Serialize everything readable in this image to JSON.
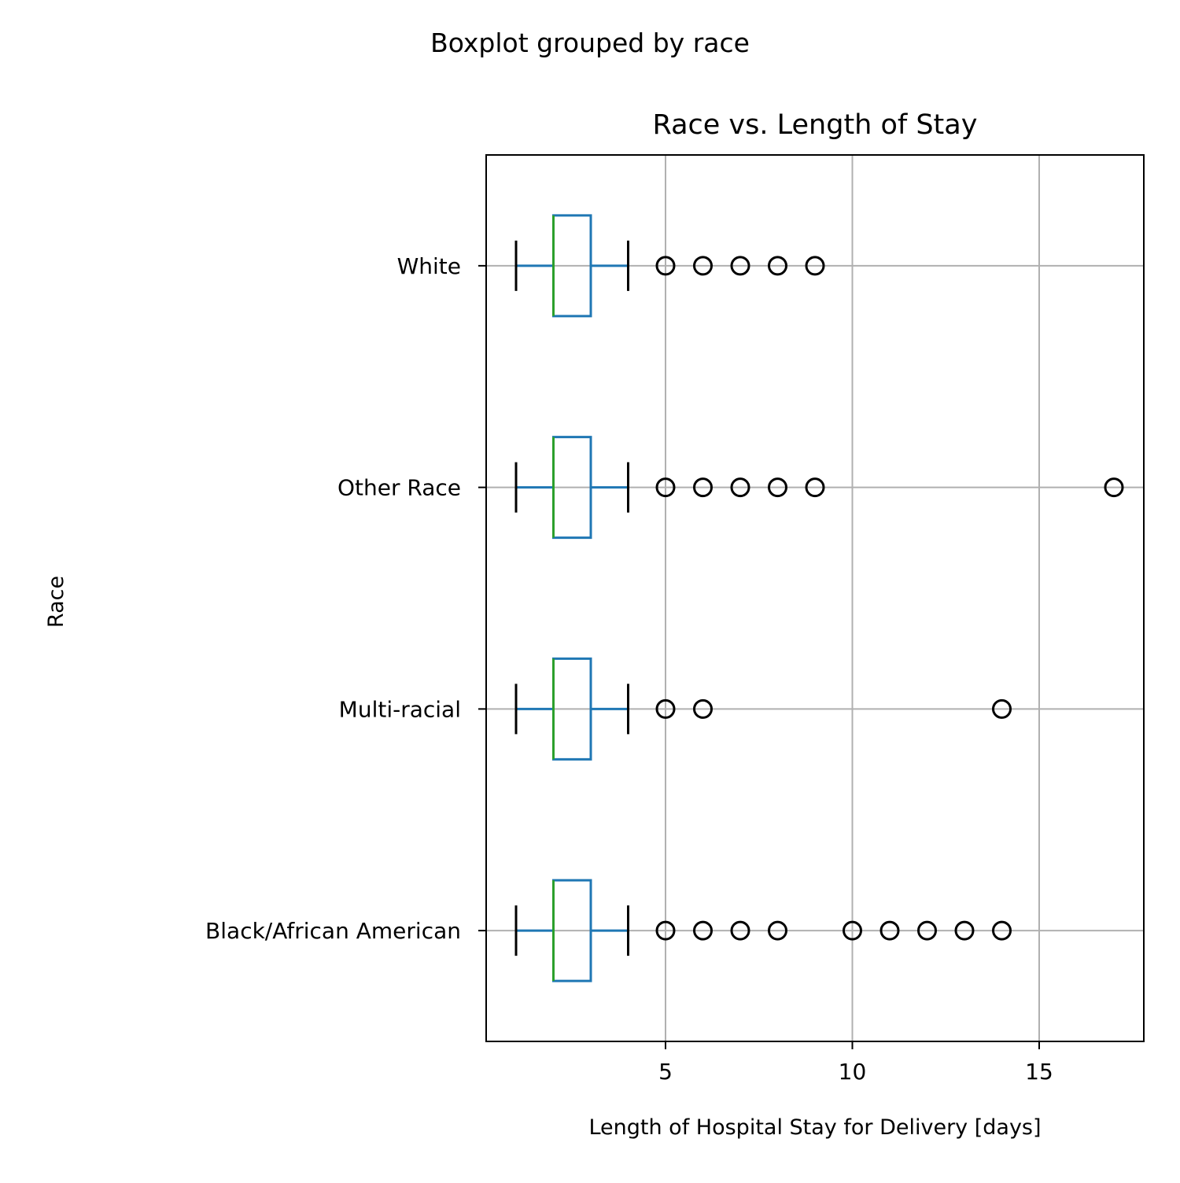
{
  "chart_data": {
    "type": "boxplot",
    "orientation": "horizontal",
    "suptitle": "Boxplot grouped by race",
    "title": "Race vs. Length of Stay",
    "xlabel": "Length of Hospital Stay for Delivery [days]",
    "ylabel": "Race",
    "xlim": [
      0.2,
      17.8
    ],
    "xticks": [
      5,
      10,
      15
    ],
    "grid": true,
    "colors": {
      "box": "#1f77b4",
      "median": "#2ca02c",
      "whisker": "#1f77b4",
      "cap": "#000000",
      "flier": "#000000",
      "grid": "#b0b0b0",
      "axes": "#000000"
    },
    "categories": [
      "Black/African American",
      "Multi-racial",
      "Other Race",
      "White"
    ],
    "boxes": [
      {
        "label": "Black/African American",
        "whislo": 1,
        "q1": 2,
        "med": 2,
        "q3": 3,
        "whishi": 4,
        "fliers": [
          5,
          6,
          7,
          8,
          10,
          11,
          12,
          13,
          14
        ]
      },
      {
        "label": "Multi-racial",
        "whislo": 1,
        "q1": 2,
        "med": 2,
        "q3": 3,
        "whishi": 4,
        "fliers": [
          5,
          6,
          14
        ]
      },
      {
        "label": "Other Race",
        "whislo": 1,
        "q1": 2,
        "med": 2,
        "q3": 3,
        "whishi": 4,
        "fliers": [
          5,
          6,
          7,
          8,
          9,
          17
        ]
      },
      {
        "label": "White",
        "whislo": 1,
        "q1": 2,
        "med": 2,
        "q3": 3,
        "whishi": 4,
        "fliers": [
          5,
          6,
          7,
          8,
          9
        ]
      }
    ]
  }
}
